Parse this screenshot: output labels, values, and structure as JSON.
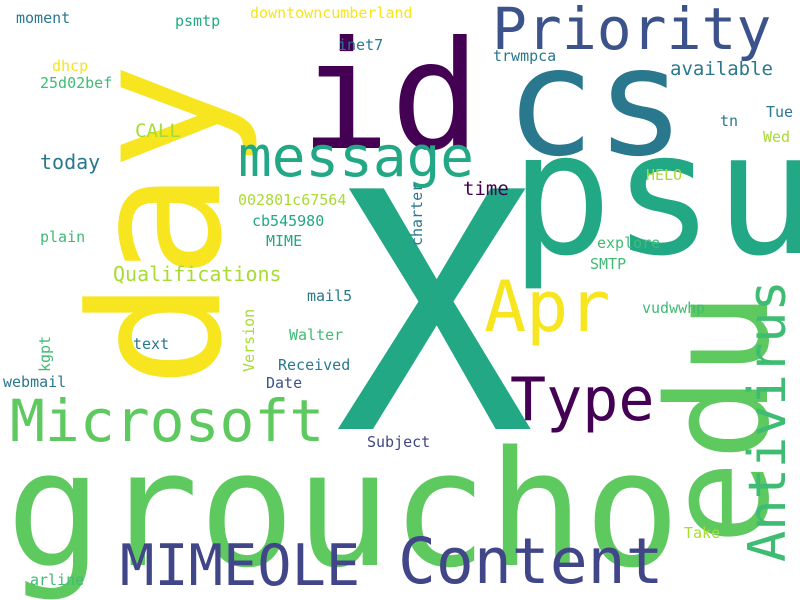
{
  "palette": {
    "background": "#ffffff",
    "yellow": "#f6e51f",
    "green": "#5ec95f",
    "teal": "#22a884",
    "teal_blue": "#2a788e",
    "slate_blue": "#3b528b",
    "indigo": "#404688",
    "purple": "#440154",
    "lime": "#a8db34",
    "mid_green": "#3fbc73"
  },
  "words": [
    "X",
    "groucho",
    "day",
    "psu",
    "edu",
    "cs",
    "id",
    "Content",
    "MIMEOLE",
    "Priority",
    "message",
    "Microsoft",
    "Antivirus",
    "Apr",
    "Type",
    "Qualifications",
    "available",
    "downtowncumberland",
    "today",
    "CALL",
    "moment",
    "psmtp",
    "inet7",
    "trwmpca",
    "dhcp",
    "25d02bef",
    "time",
    "002801c67564",
    "cb545980",
    "MIME",
    "plain",
    "HELO",
    "Wed",
    "tn",
    "Tue",
    "explore",
    "SMTP",
    "charter",
    "mail5",
    "vudwwhp",
    "Walter",
    "text",
    "kgpt",
    "webmail",
    "Version",
    "Received",
    "Date",
    "Subject",
    "Take",
    "arline"
  ]
}
